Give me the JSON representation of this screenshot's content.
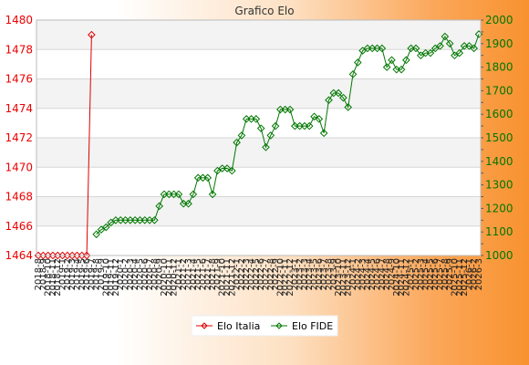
{
  "chart_data": {
    "type": "line",
    "title": "Grafico Elo",
    "grid": true,
    "legend_position": "bottom",
    "y_left": {
      "min": 1464,
      "max": 1480,
      "ticks": [
        1464,
        1466,
        1468,
        1470,
        1472,
        1474,
        1476,
        1478,
        1480
      ]
    },
    "y_right": {
      "min": 1000,
      "max": 2000,
      "ticks": [
        1000,
        1100,
        1200,
        1300,
        1400,
        1500,
        1600,
        1700,
        1800,
        1900,
        2000
      ]
    },
    "x_tick_labels": [
      "2018-8",
      "2018-9",
      "2018-10",
      "2018-11",
      "2018-12",
      "2019-1",
      "2019-2",
      "2019-3",
      "2019-4",
      "2019-5",
      "2019-6",
      "2019-7",
      "2019-8",
      "2019-9",
      "2019-10",
      "2019-11",
      "2019-12",
      "2020-1",
      "2020-2",
      "2020-3",
      "2020-4",
      "2020-5",
      "2020-6",
      "2020-7",
      "2020-8",
      "2020-9",
      "2020-10",
      "2020-11",
      "2020-12",
      "2021-1",
      "2021-2",
      "2021-3",
      "2021-4",
      "2021-5",
      "2021-6",
      "2021-7",
      "2021-8",
      "2021-9",
      "2021-10",
      "2021-11",
      "2021-12",
      "2022-1",
      "2022-2",
      "2022-3",
      "2022-4",
      "2022-5",
      "2022-6",
      "2022-7",
      "2022-8",
      "2022-9",
      "2022-10",
      "2022-11",
      "2022-12",
      "2023-1",
      "2023-2",
      "2023-3",
      "2023-4",
      "2023-5",
      "2023-6",
      "2023-7",
      "2023-8",
      "2023-9",
      "2023-10",
      "2023-11",
      "2023-12",
      "2024-1",
      "2024-2",
      "2024-3",
      "2024-4",
      "2024-5",
      "2024-6",
      "2024-7",
      "2024-8",
      "2024-9",
      "2024-10",
      "2024-11",
      "2024-12",
      "2025-1",
      "2025-2",
      "2025-3",
      "2025-4",
      "2025-5",
      "2025-6",
      "2025-7",
      "2025-8",
      "2025-9",
      "2025-10",
      "2025-11",
      "2025-12",
      "2026-1",
      "2026-2",
      "2026-3"
    ],
    "series": [
      {
        "name": "Elo Italia",
        "axis": "left",
        "color": "#dd0000",
        "marker": "diamond",
        "values": [
          1464,
          1464,
          1464,
          1464,
          1464,
          1464,
          1464,
          1464,
          1464,
          1464,
          1464,
          1479
        ]
      },
      {
        "name": "Elo FIDE",
        "axis": "right",
        "color": "#007700",
        "marker": "diamond",
        "start_index": 12,
        "values": [
          1090,
          1110,
          1120,
          1140,
          1150,
          1150,
          1150,
          1150,
          1150,
          1150,
          1150,
          1150,
          1150,
          1210,
          1260,
          1260,
          1260,
          1260,
          1220,
          1220,
          1260,
          1330,
          1330,
          1330,
          1260,
          1360,
          1370,
          1370,
          1360,
          1480,
          1510,
          1580,
          1580,
          1580,
          1540,
          1460,
          1510,
          1550,
          1620,
          1620,
          1620,
          1550,
          1550,
          1550,
          1550,
          1590,
          1580,
          1520,
          1660,
          1690,
          1690,
          1670,
          1630,
          1770,
          1820,
          1870,
          1880,
          1880,
          1880,
          1880,
          1800,
          1830,
          1790,
          1790,
          1830,
          1880,
          1880,
          1850,
          1860,
          1860,
          1880,
          1890,
          1930,
          1900,
          1850,
          1860,
          1890,
          1890,
          1880,
          1940
        ]
      }
    ]
  }
}
